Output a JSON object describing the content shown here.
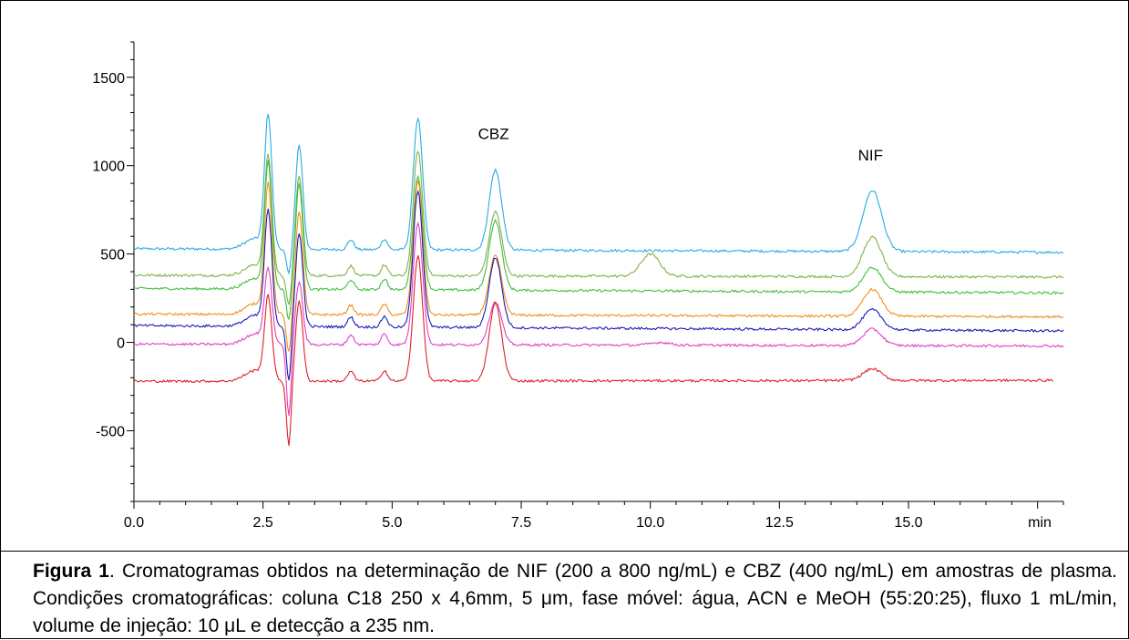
{
  "chart_data": {
    "type": "line",
    "title": "",
    "xlabel": "min",
    "ylabel": "",
    "xlim": [
      0.0,
      18.0
    ],
    "ylim": [
      -900,
      1700
    ],
    "x_ticks": [
      "0.0",
      "2.5",
      "5.0",
      "7.5",
      "10.0",
      "12.5",
      "15.0"
    ],
    "y_ticks": [
      "1500",
      "1000",
      "500",
      "0",
      "-500"
    ],
    "grid": false,
    "legend": "none",
    "annotations": [
      {
        "text": "CBZ",
        "x": 7.0,
        "y": 1150
      },
      {
        "text": "NIF",
        "x": 14.3,
        "y": 1030
      }
    ],
    "series": [
      {
        "color": "#29abe2",
        "baseline": 530,
        "end": 510,
        "peaks": [
          [
            2.6,
            1270
          ],
          [
            3.2,
            1115
          ],
          [
            5.5,
            1270
          ],
          [
            7.0,
            975
          ],
          [
            14.3,
            860
          ]
        ],
        "dip": [
          3.0,
          380
        ]
      },
      {
        "color": "#7fb24a",
        "baseline": 380,
        "end": 370,
        "peaks": [
          [
            2.6,
            1040
          ],
          [
            3.2,
            940
          ],
          [
            5.5,
            1085
          ],
          [
            7.0,
            740
          ],
          [
            10.0,
            500
          ],
          [
            14.3,
            595
          ]
        ],
        "dip": [
          3.0,
          200
        ]
      },
      {
        "color": "#3fbf3f",
        "baseline": 305,
        "end": 280,
        "peaks": [
          [
            2.6,
            1000
          ],
          [
            3.2,
            895
          ],
          [
            5.5,
            945
          ],
          [
            7.0,
            690
          ],
          [
            14.3,
            425
          ]
        ],
        "dip": [
          3.0,
          120
        ]
      },
      {
        "color": "#f0901c",
        "baseline": 160,
        "end": 145,
        "peaks": [
          [
            2.6,
            880
          ],
          [
            3.2,
            735
          ],
          [
            5.5,
            920
          ],
          [
            7.0,
            490
          ],
          [
            14.3,
            300
          ]
        ],
        "dip": [
          3.0,
          -60
        ]
      },
      {
        "color": "#1a1ab8",
        "baseline": 95,
        "end": 65,
        "peaks": [
          [
            2.6,
            725
          ],
          [
            3.2,
            615
          ],
          [
            5.5,
            860
          ],
          [
            7.0,
            480
          ],
          [
            14.3,
            185
          ]
        ],
        "dip": [
          3.0,
          -230
        ]
      },
      {
        "color": "#e040c0",
        "baseline": -10,
        "end": -20,
        "peaks": [
          [
            2.6,
            400
          ],
          [
            3.2,
            340
          ],
          [
            5.5,
            680
          ],
          [
            7.0,
            230
          ],
          [
            10.2,
            0
          ],
          [
            14.3,
            75
          ]
        ],
        "dip": [
          3.0,
          -420
        ]
      },
      {
        "color": "#e0202a",
        "baseline": -220,
        "end": -215,
        "peaks": [
          [
            2.6,
            240
          ],
          [
            3.2,
            235
          ],
          [
            5.5,
            490
          ],
          [
            7.0,
            220
          ],
          [
            14.3,
            -150
          ]
        ],
        "dip": [
          3.0,
          -590
        ]
      }
    ]
  },
  "caption": {
    "lead": "Figura 1",
    "text": ". Cromatogramas obtidos na determinação de NIF (200 a 800 ng/mL) e CBZ (400 ng/mL)  em amostras de plasma.  Condições cromatográficas: coluna C18 250 x 4,6mm, 5 μm, fase móvel: água, ACN e MeOH (55:20:25), fluxo 1 mL/min, volume de injeção: 10 μL e detecção a 235 nm."
  }
}
